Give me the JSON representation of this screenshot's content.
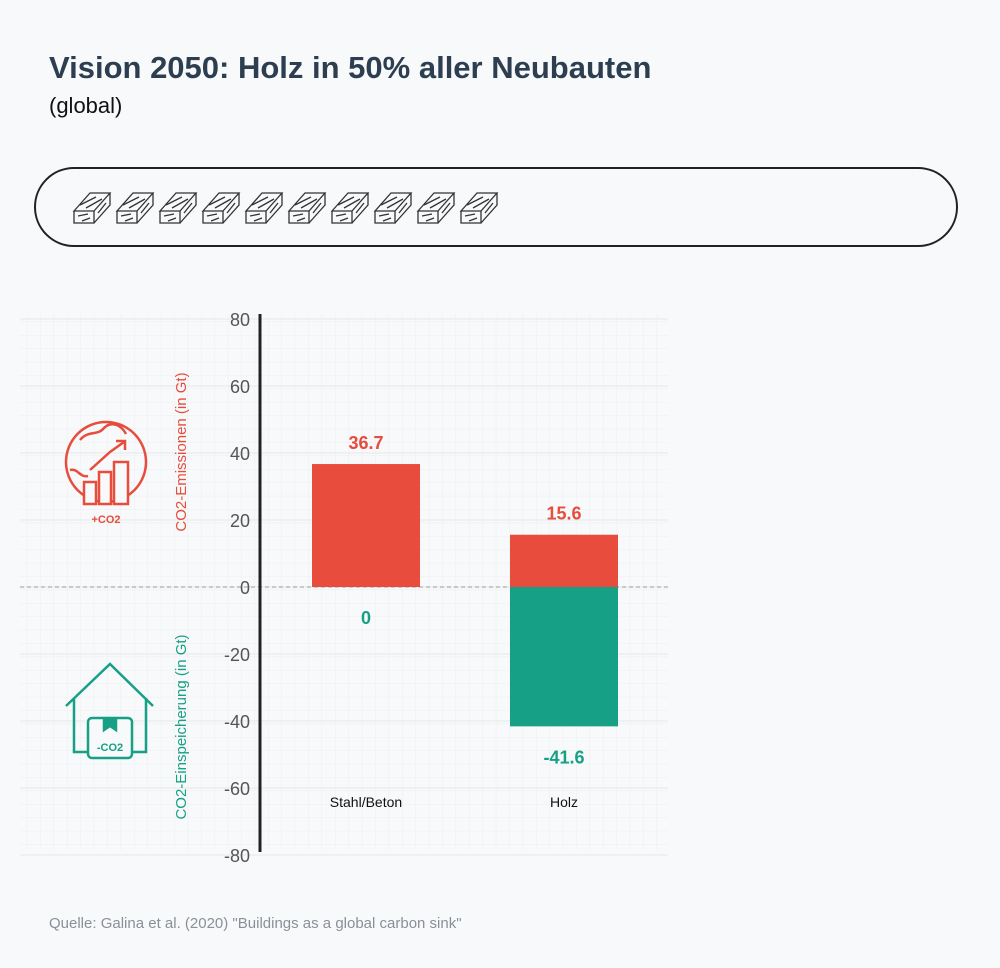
{
  "title": "Vision 2050: Holz in 50% aller Neubauten",
  "subtitle": "(global)",
  "timber_icon_count": 10,
  "source": "Quelle: Galina et al. (2020) \"Buildings as a global carbon sink\"",
  "icons": {
    "emission_icon": "globe-rising-bars-icon",
    "emission_icon_label": "+CO2",
    "storage_icon": "house-storage-icon",
    "storage_icon_label": "-CO2"
  },
  "colors": {
    "emission": "#e74c3c",
    "storage": "#16a085",
    "axis": "#222222"
  },
  "chart_data": {
    "type": "bar",
    "categories": [
      "Stahl/Beton",
      "Holz"
    ],
    "series": [
      {
        "name": "CO2-Emissionen (in Gt)",
        "values": [
          36.7,
          15.6
        ]
      },
      {
        "name": "CO2-Einspeicherung (in Gt)",
        "values": [
          0,
          -41.6
        ]
      }
    ],
    "ylim": [
      -80,
      80
    ],
    "yticks": [
      80,
      60,
      40,
      20,
      0,
      -20,
      -40,
      -60,
      -80
    ],
    "ylabel_positive": "CO2-Emissionen (in Gt)",
    "ylabel_negative": "CO2-Einspeicherung (in Gt)",
    "grid": true
  }
}
